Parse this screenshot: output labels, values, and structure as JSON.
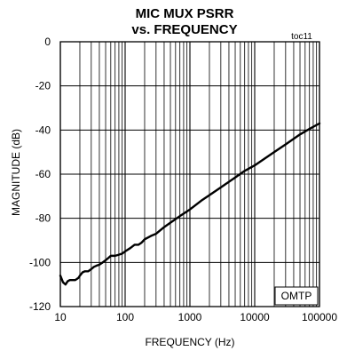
{
  "chart_data": {
    "type": "line",
    "title": "MIC MUX PSRR",
    "subtitle": "vs. FREQUENCY",
    "tag": "toc11",
    "xlabel": "FREQUENCY (Hz)",
    "ylabel": "MAGNITUDE (dB)",
    "x_scale": "log",
    "xlim": [
      10,
      100000
    ],
    "ylim": [
      -120,
      0
    ],
    "x_tick_values": [
      10,
      100,
      1000,
      10000,
      100000
    ],
    "x_tick_labels": [
      "10",
      "100",
      "1000",
      "10000",
      "100000"
    ],
    "y_tick_values": [
      0,
      -20,
      -40,
      -60,
      -80,
      -100,
      -120
    ],
    "y_tick_labels": [
      "0",
      "-20",
      "-40",
      "-60",
      "-80",
      "-100",
      "-120"
    ],
    "grid": true,
    "annotation": "OMTP",
    "series": [
      {
        "color": "#000000",
        "x": [
          10,
          11,
          12,
          13,
          14,
          15,
          17,
          19,
          20,
          22,
          24,
          27,
          30,
          33,
          36,
          40,
          45,
          50,
          55,
          60,
          70,
          80,
          90,
          100,
          120,
          140,
          160,
          180,
          200,
          250,
          300,
          400,
          500,
          700,
          1000,
          1500,
          2000,
          3000,
          5000,
          7000,
          10000,
          20000,
          30000,
          50000,
          70000,
          100000
        ],
        "y": [
          -106,
          -109,
          -110,
          -108.5,
          -108,
          -108,
          -108,
          -107,
          -106,
          -104.5,
          -104,
          -104,
          -103,
          -102,
          -101.5,
          -101,
          -100,
          -99,
          -98,
          -97,
          -97,
          -96.5,
          -96,
          -95,
          -93.5,
          -92,
          -92,
          -91,
          -89.5,
          -88,
          -87,
          -84,
          -82,
          -79,
          -76,
          -72,
          -69.5,
          -66,
          -61.5,
          -58.5,
          -56,
          -50,
          -46.5,
          -42,
          -39.5,
          -37
        ]
      }
    ]
  }
}
